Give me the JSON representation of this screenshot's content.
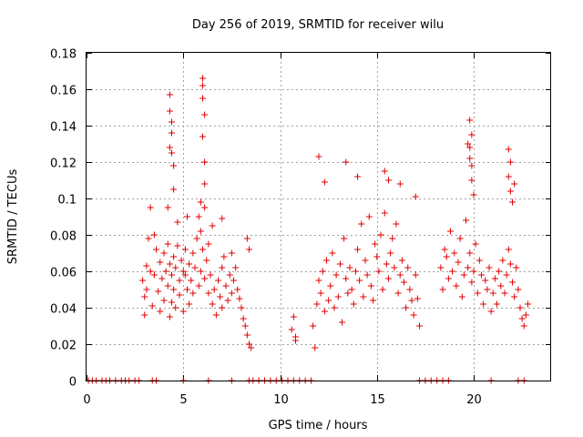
{
  "chart_data": {
    "type": "scatter",
    "title": "Day 256 of 2019, SRMTID for receiver wilu",
    "xlabel": "GPS time / hours",
    "ylabel": "SRMTID / TECUs",
    "xlim": [
      0,
      24
    ],
    "ylim": [
      0,
      0.18
    ],
    "x_ticks": [
      0,
      5,
      10,
      15,
      20
    ],
    "x_tick_labels": [
      "0",
      "5",
      "10",
      "15",
      "20"
    ],
    "y_ticks": [
      0,
      0.02,
      0.04,
      0.06,
      0.08,
      0.1,
      0.12,
      0.14,
      0.16,
      0.18
    ],
    "y_tick_labels": [
      "0",
      "0.02",
      "0.04",
      "0.06",
      "0.08",
      "0.1",
      "0.12",
      "0.14",
      "0.16",
      "0.18"
    ],
    "grid": true,
    "marker": "+",
    "color": "#e00000",
    "series": [
      {
        "name": "SRMTID",
        "x": [
          2.9,
          3.0,
          3.0,
          3.1,
          3.1,
          3.2,
          3.3,
          3.4,
          3.5,
          3.5,
          3.6,
          3.7,
          3.8,
          3.8,
          3.9,
          4.0,
          4.0,
          4.1,
          4.2,
          4.2,
          4.3,
          4.3,
          4.4,
          4.4,
          4.5,
          4.5,
          4.6,
          4.6,
          4.7,
          4.8,
          4.8,
          4.9,
          5.0,
          5.0,
          5.1,
          5.1,
          5.2,
          5.3,
          5.3,
          5.4,
          5.5,
          5.5,
          5.6,
          5.7,
          5.8,
          5.8,
          5.9,
          5.9,
          6.0,
          6.1,
          6.1,
          6.2,
          6.3,
          6.3,
          6.4,
          6.5,
          6.6,
          6.7,
          6.8,
          6.9,
          7.0,
          7.0,
          7.1,
          7.2,
          7.3,
          7.4,
          7.5,
          7.5,
          7.6,
          7.7,
          7.8,
          7.9,
          8.0,
          8.1,
          8.2,
          8.3,
          8.4,
          8.5,
          10.6,
          10.7,
          10.8,
          11.7,
          11.8,
          11.9,
          12.0,
          12.1,
          12.2,
          12.3,
          12.4,
          12.5,
          12.6,
          12.7,
          12.8,
          12.9,
          13.0,
          13.1,
          13.2,
          13.3,
          13.4,
          13.5,
          13.6,
          13.7,
          13.8,
          13.9,
          14.0,
          14.1,
          14.2,
          14.3,
          14.4,
          14.5,
          14.6,
          14.7,
          14.8,
          14.9,
          15.0,
          15.1,
          15.2,
          15.3,
          15.4,
          15.5,
          15.6,
          15.7,
          15.8,
          15.9,
          16.0,
          16.1,
          16.2,
          16.3,
          16.4,
          16.5,
          16.6,
          16.7,
          16.8,
          16.9,
          17.0,
          17.1,
          17.2,
          18.3,
          18.4,
          18.5,
          18.6,
          18.7,
          18.8,
          18.9,
          19.0,
          19.1,
          19.2,
          19.3,
          19.4,
          19.5,
          19.6,
          19.7,
          19.8,
          19.9,
          20.0,
          20.1,
          20.2,
          20.3,
          20.4,
          20.5,
          20.6,
          20.7,
          20.8,
          20.9,
          21.0,
          21.1,
          21.2,
          21.3,
          21.4,
          21.5,
          21.6,
          21.7,
          21.8,
          21.9,
          22.0,
          22.1,
          22.2,
          22.3,
          22.4,
          22.5,
          22.6,
          22.7,
          22.8,
          4.3,
          4.3,
          4.4,
          4.4,
          4.5,
          4.5,
          4.3,
          4.4,
          6.0,
          6.0,
          6.1,
          6.0,
          6.1,
          6.1,
          6.0,
          5.9,
          19.8,
          19.9,
          19.8,
          19.9,
          19.9,
          20.0,
          19.8,
          19.7,
          21.8,
          21.9,
          21.8,
          21.9,
          22.0,
          22.1,
          12.0,
          12.3,
          13.4,
          14.0,
          15.4,
          15.6,
          16.2,
          17.0,
          4.2,
          4.7,
          5.2,
          6.5,
          7.0,
          3.3,
          8.3,
          8.4,
          10.8,
          0.1,
          0.3,
          0.5,
          0.8,
          1.0,
          1.2,
          1.5,
          1.8,
          2.0,
          2.2,
          2.5,
          2.7,
          3.4,
          3.6,
          5.0,
          6.3,
          7.5,
          8.4,
          8.6,
          8.9,
          9.2,
          9.5,
          9.8,
          10.1,
          10.4,
          10.7,
          11.0,
          11.3,
          11.6,
          17.2,
          17.5,
          17.8,
          18.1,
          18.4,
          18.7,
          20.9,
          22.3,
          22.6
        ],
        "y": [
          0.055,
          0.046,
          0.036,
          0.063,
          0.05,
          0.078,
          0.06,
          0.041,
          0.08,
          0.058,
          0.072,
          0.049,
          0.065,
          0.038,
          0.056,
          0.07,
          0.044,
          0.06,
          0.052,
          0.075,
          0.035,
          0.064,
          0.058,
          0.043,
          0.068,
          0.05,
          0.062,
          0.04,
          0.074,
          0.055,
          0.047,
          0.066,
          0.06,
          0.038,
          0.058,
          0.072,
          0.05,
          0.064,
          0.042,
          0.055,
          0.07,
          0.048,
          0.062,
          0.078,
          0.052,
          0.09,
          0.06,
          0.082,
          0.072,
          0.056,
          0.095,
          0.066,
          0.048,
          0.075,
          0.058,
          0.042,
          0.05,
          0.036,
          0.055,
          0.046,
          0.062,
          0.04,
          0.068,
          0.052,
          0.044,
          0.058,
          0.048,
          0.07,
          0.055,
          0.062,
          0.05,
          0.045,
          0.04,
          0.034,
          0.03,
          0.025,
          0.02,
          0.018,
          0.028,
          0.035,
          0.024,
          0.03,
          0.018,
          0.042,
          0.055,
          0.048,
          0.06,
          0.038,
          0.066,
          0.044,
          0.052,
          0.07,
          0.04,
          0.058,
          0.046,
          0.064,
          0.032,
          0.078,
          0.056,
          0.048,
          0.062,
          0.05,
          0.042,
          0.06,
          0.072,
          0.055,
          0.086,
          0.046,
          0.066,
          0.058,
          0.09,
          0.052,
          0.044,
          0.075,
          0.068,
          0.06,
          0.08,
          0.05,
          0.092,
          0.064,
          0.056,
          0.07,
          0.078,
          0.062,
          0.086,
          0.048,
          0.058,
          0.066,
          0.054,
          0.04,
          0.062,
          0.05,
          0.044,
          0.036,
          0.058,
          0.045,
          0.03,
          0.062,
          0.05,
          0.072,
          0.068,
          0.056,
          0.082,
          0.06,
          0.07,
          0.052,
          0.065,
          0.078,
          0.046,
          0.058,
          0.088,
          0.062,
          0.07,
          0.054,
          0.06,
          0.075,
          0.048,
          0.066,
          0.058,
          0.042,
          0.055,
          0.05,
          0.062,
          0.038,
          0.048,
          0.056,
          0.042,
          0.06,
          0.052,
          0.066,
          0.048,
          0.058,
          0.072,
          0.064,
          0.054,
          0.046,
          0.062,
          0.05,
          0.04,
          0.034,
          0.03,
          0.036,
          0.042,
          0.157,
          0.148,
          0.136,
          0.125,
          0.118,
          0.105,
          0.128,
          0.142,
          0.166,
          0.155,
          0.146,
          0.134,
          0.12,
          0.108,
          0.162,
          0.098,
          0.143,
          0.135,
          0.128,
          0.118,
          0.11,
          0.102,
          0.122,
          0.13,
          0.127,
          0.12,
          0.112,
          0.104,
          0.098,
          0.108,
          0.123,
          0.109,
          0.12,
          0.112,
          0.115,
          0.11,
          0.108,
          0.101,
          0.095,
          0.087,
          0.09,
          0.085,
          0.089,
          0.095,
          0.078,
          0.072,
          0.022,
          0.0,
          0.0,
          0.0,
          0.0,
          0.0,
          0.0,
          0.0,
          0.0,
          0.0,
          0.0,
          0.0,
          0.0,
          0.0,
          0.0,
          0.0,
          0.0,
          0.0,
          0.0,
          0.0,
          0.0,
          0.0,
          0.0,
          0.0,
          0.0,
          0.0,
          0.0,
          0.0,
          0.0,
          0.0,
          0.0,
          0.0,
          0.0,
          0.0,
          0.0,
          0.0,
          0.0,
          0.0,
          0.0
        ]
      }
    ]
  }
}
